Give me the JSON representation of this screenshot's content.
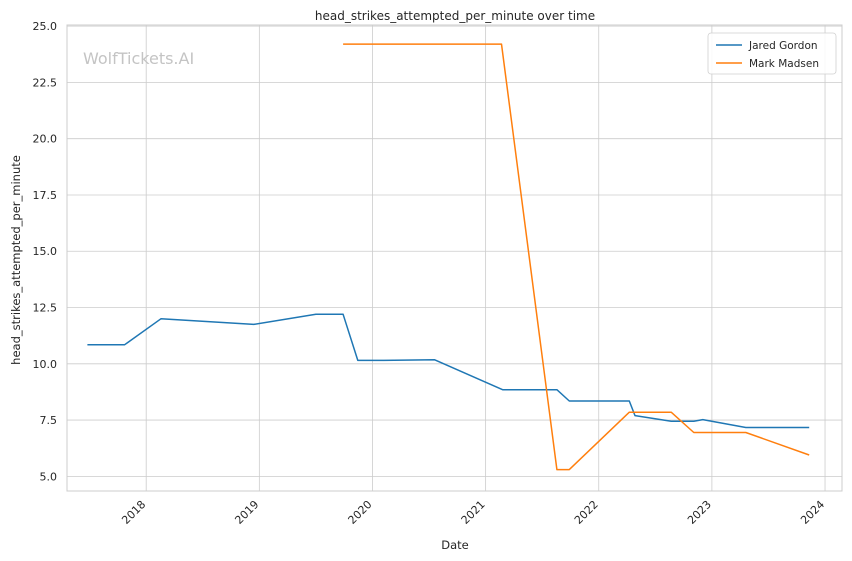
{
  "watermark": "WolfTickets.AI",
  "chart_data": {
    "type": "line",
    "title": "head_strikes_attempted_per_minute over time",
    "xlabel": "Date",
    "ylabel": "head_strikes_attempted_per_minute",
    "x_ticks": [
      "2018",
      "2019",
      "2020",
      "2021",
      "2022",
      "2023",
      "2024"
    ],
    "y_ticks": [
      "5.0",
      "7.5",
      "10.0",
      "12.5",
      "15.0",
      "17.5",
      "20.0",
      "22.5",
      "25.0"
    ],
    "xlim": [
      2017.3,
      2024.15
    ],
    "ylim": [
      4.35,
      25.05
    ],
    "grid": true,
    "legend_position": "top-right",
    "series": [
      {
        "name": "Jared Gordon",
        "color": "#1f77b4",
        "points": [
          [
            2017.48,
            10.85
          ],
          [
            2017.81,
            10.85
          ],
          [
            2018.13,
            12.0
          ],
          [
            2018.95,
            11.75
          ],
          [
            2019.5,
            12.2
          ],
          [
            2019.74,
            12.2
          ],
          [
            2019.87,
            10.15
          ],
          [
            2020.1,
            10.15
          ],
          [
            2020.55,
            10.18
          ],
          [
            2021.15,
            8.85
          ],
          [
            2021.63,
            8.85
          ],
          [
            2021.74,
            8.35
          ],
          [
            2022.27,
            8.35
          ],
          [
            2022.32,
            7.7
          ],
          [
            2022.64,
            7.45
          ],
          [
            2022.84,
            7.45
          ],
          [
            2022.92,
            7.52
          ],
          [
            2023.3,
            7.17
          ],
          [
            2023.86,
            7.17
          ]
        ]
      },
      {
        "name": "Mark Madsen",
        "color": "#ff7f0e",
        "points": [
          [
            2019.74,
            24.2
          ],
          [
            2021.14,
            24.2
          ],
          [
            2021.63,
            5.3
          ],
          [
            2021.74,
            5.3
          ],
          [
            2022.27,
            7.85
          ],
          [
            2022.64,
            7.85
          ],
          [
            2022.84,
            6.95
          ],
          [
            2023.3,
            6.95
          ],
          [
            2023.86,
            5.95
          ]
        ]
      }
    ]
  }
}
